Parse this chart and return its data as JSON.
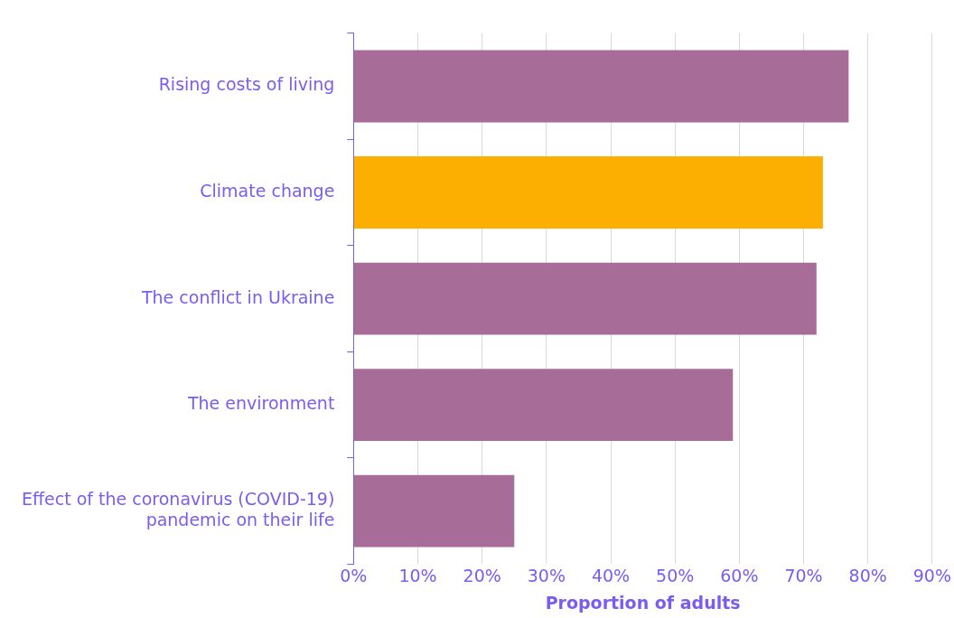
{
  "chart_data": {
    "type": "bar",
    "orientation": "horizontal",
    "xlabel": "Proportion of adults",
    "categories": [
      "Rising costs of living",
      "Climate change",
      "The conflict in Ukraine",
      "The environment",
      "Effect of the coronavirus (COVID-19) pandemic on their life"
    ],
    "values": [
      77,
      73,
      72,
      59,
      25
    ],
    "colors": [
      "#a86c98",
      "#fcaf00",
      "#a86c98",
      "#a86c98",
      "#a86c98"
    ],
    "xlim": [
      0,
      90
    ],
    "xticks": [
      {
        "value": 0,
        "label": "0%"
      },
      {
        "value": 10,
        "label": "10%"
      },
      {
        "value": 20,
        "label": "20%"
      },
      {
        "value": 30,
        "label": "30%"
      },
      {
        "value": 40,
        "label": "40%"
      },
      {
        "value": 50,
        "label": "50%"
      },
      {
        "value": 60,
        "label": "60%"
      },
      {
        "value": 70,
        "label": "70%"
      },
      {
        "value": 80,
        "label": "80%"
      },
      {
        "value": 90,
        "label": "90%"
      }
    ],
    "grid": "x"
  }
}
